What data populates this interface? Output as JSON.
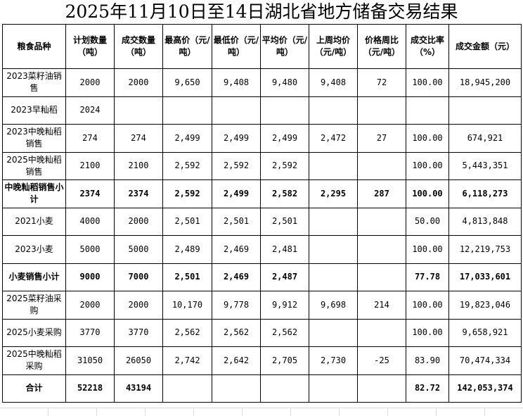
{
  "title": "2025年11月10日至14日湖北省地方储备交易结果",
  "headers": [
    "粮食品种",
    "计划数量（吨）",
    "成交数量（吨）",
    "最高价（元/吨）",
    "最低价（元/吨）",
    "平均价（元/吨）",
    "上周均价（元/吨）",
    "价格周比（元/吨）",
    "成交比率（%）",
    "成交金额（元）"
  ],
  "rows": [
    {
      "bold": false,
      "cells": [
        "2023菜籽油销售",
        "2000",
        "2000",
        "9,650",
        "9,408",
        "9,480",
        "9,408",
        "72",
        "100.00",
        "18,945,200"
      ]
    },
    {
      "bold": false,
      "cells": [
        "2023早籼稻",
        "2024",
        "",
        "",
        "",
        "",
        "",
        "",
        "",
        ""
      ]
    },
    {
      "bold": false,
      "cells": [
        "2023中晚籼稻销售",
        "274",
        "274",
        "2,499",
        "2,499",
        "2,499",
        "2,472",
        "27",
        "100.00",
        "674,921"
      ]
    },
    {
      "bold": false,
      "cells": [
        "2025中晚籼稻销售",
        "2100",
        "2100",
        "2,592",
        "2,592",
        "2,592",
        "",
        "",
        "100.00",
        "5,443,351"
      ]
    },
    {
      "bold": true,
      "cells": [
        "中晚籼稻销售小计",
        "2374",
        "2374",
        "2,592",
        "2,499",
        "2,582",
        "2,295",
        "287",
        "100.00",
        "6,118,273"
      ]
    },
    {
      "bold": false,
      "cells": [
        "2021小麦",
        "4000",
        "2000",
        "2,501",
        "2,501",
        "2,501",
        "",
        "",
        "50.00",
        "4,813,848"
      ]
    },
    {
      "bold": false,
      "cells": [
        "2023小麦",
        "5000",
        "5000",
        "2,489",
        "2,469",
        "2,481",
        "",
        "",
        "100.00",
        "12,219,753"
      ]
    },
    {
      "bold": true,
      "cells": [
        "小麦销售小计",
        "9000",
        "7000",
        "2,501",
        "2,469",
        "2,487",
        "",
        "",
        "77.78",
        "17,033,601"
      ]
    },
    {
      "bold": false,
      "cells": [
        "2025菜籽油采购",
        "2000",
        "2000",
        "10,170",
        "9,778",
        "9,912",
        "9,698",
        "214",
        "100.00",
        "19,823,046"
      ]
    },
    {
      "bold": false,
      "cells": [
        "2025小麦采购",
        "3770",
        "3770",
        "2,562",
        "2,562",
        "2,562",
        "",
        "",
        "100.00",
        "9,658,921"
      ]
    },
    {
      "bold": false,
      "cells": [
        "2025中晚籼稻采购",
        "31050",
        "26050",
        "2,742",
        "2,642",
        "2,705",
        "2,730",
        "-25",
        "83.90",
        "70,474,334"
      ]
    },
    {
      "bold": true,
      "cells": [
        "合计",
        "52218",
        "43194",
        "",
        "",
        "",
        "",
        "",
        "82.72",
        "142,053,374"
      ]
    }
  ]
}
